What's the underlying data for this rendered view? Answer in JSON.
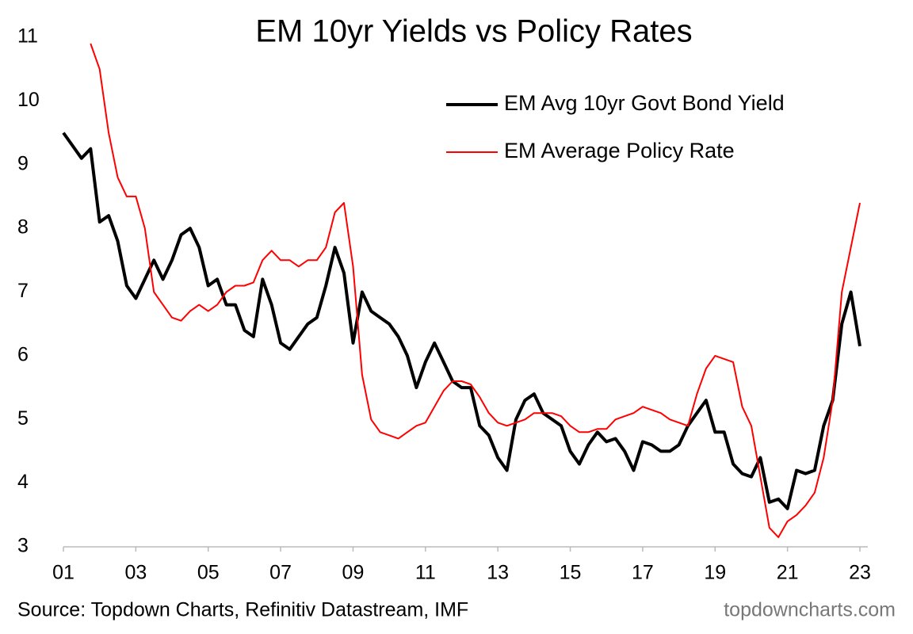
{
  "chart_data": {
    "type": "line",
    "title": "EM 10yr Yields vs Policy Rates",
    "source": "Source: Topdown Charts, Refinitiv Datastream, IMF",
    "watermark": "topdowncharts.com",
    "legend": "upper right",
    "x": [
      2001,
      2001.25,
      2001.5,
      2001.75,
      2002,
      2002.25,
      2002.5,
      2002.75,
      2003,
      2003.25,
      2003.5,
      2003.75,
      2004,
      2004.25,
      2004.5,
      2004.75,
      2005,
      2005.25,
      2005.5,
      2005.75,
      2006,
      2006.25,
      2006.5,
      2006.75,
      2007,
      2007.25,
      2007.5,
      2007.75,
      2008,
      2008.25,
      2008.5,
      2008.75,
      2009,
      2009.25,
      2009.5,
      2009.75,
      2010,
      2010.25,
      2010.5,
      2010.75,
      2011,
      2011.25,
      2011.5,
      2011.75,
      2012,
      2012.25,
      2012.5,
      2012.75,
      2013,
      2013.25,
      2013.5,
      2013.75,
      2014,
      2014.25,
      2014.5,
      2014.75,
      2015,
      2015.25,
      2015.5,
      2015.75,
      2016,
      2016.25,
      2016.5,
      2016.75,
      2017,
      2017.25,
      2017.5,
      2017.75,
      2018,
      2018.25,
      2018.5,
      2018.75,
      2019,
      2019.25,
      2019.5,
      2019.75,
      2020,
      2020.25,
      2020.5,
      2020.75,
      2021,
      2021.25,
      2021.5,
      2021.75,
      2022,
      2022.25,
      2022.5,
      2022.75,
      2023
    ],
    "series": [
      {
        "name": "EM Avg 10yr Govt Bond Yield",
        "color": "#000000",
        "width": 4,
        "values": [
          9.5,
          9.3,
          9.1,
          9.25,
          8.1,
          8.2,
          7.8,
          7.1,
          6.9,
          7.2,
          7.5,
          7.2,
          7.5,
          7.9,
          8.0,
          7.7,
          7.1,
          7.2,
          6.8,
          6.8,
          6.4,
          6.3,
          7.2,
          6.8,
          6.2,
          6.1,
          6.3,
          6.5,
          6.6,
          7.1,
          7.7,
          7.3,
          6.2,
          7.0,
          6.7,
          6.6,
          6.5,
          6.3,
          6.0,
          5.5,
          5.9,
          6.2,
          5.9,
          5.6,
          5.5,
          5.5,
          4.9,
          4.75,
          4.4,
          4.2,
          5.0,
          5.3,
          5.4,
          5.1,
          5.0,
          4.9,
          4.5,
          4.3,
          4.6,
          4.8,
          4.65,
          4.7,
          4.5,
          4.2,
          4.65,
          4.6,
          4.5,
          4.5,
          4.6,
          4.9,
          5.1,
          5.3,
          4.8,
          4.8,
          4.3,
          4.15,
          4.1,
          4.4,
          3.7,
          3.75,
          3.6,
          4.2,
          4.15,
          4.2,
          4.9,
          5.3,
          6.5,
          7.0,
          6.15
        ]
      },
      {
        "name": "EM Average Policy Rate",
        "color": "#ff0000",
        "width": 2,
        "values": [
          null,
          null,
          null,
          10.9,
          10.5,
          9.5,
          8.8,
          8.5,
          8.5,
          8.0,
          7.0,
          6.8,
          6.6,
          6.55,
          6.7,
          6.8,
          6.7,
          6.8,
          7.0,
          7.1,
          7.1,
          7.15,
          7.5,
          7.65,
          7.5,
          7.5,
          7.4,
          7.5,
          7.5,
          7.7,
          8.25,
          8.4,
          7.4,
          5.7,
          5.0,
          4.8,
          4.75,
          4.7,
          4.8,
          4.9,
          4.95,
          5.2,
          5.45,
          5.6,
          5.6,
          5.55,
          5.35,
          5.1,
          4.95,
          4.9,
          4.95,
          5.0,
          5.1,
          5.1,
          5.1,
          5.05,
          4.9,
          4.8,
          4.8,
          4.85,
          4.85,
          5.0,
          5.05,
          5.1,
          5.2,
          5.15,
          5.1,
          5.0,
          4.95,
          4.9,
          5.4,
          5.8,
          6.0,
          5.95,
          5.9,
          5.2,
          4.9,
          4.1,
          3.3,
          3.15,
          3.4,
          3.5,
          3.65,
          3.85,
          4.4,
          5.3,
          7.0,
          7.7,
          8.4
        ]
      }
    ],
    "xlim": [
      2001,
      2023
    ],
    "xticks": [
      {
        "value": 2001,
        "label": "01"
      },
      {
        "value": 2003,
        "label": "03"
      },
      {
        "value": 2005,
        "label": "05"
      },
      {
        "value": 2007,
        "label": "07"
      },
      {
        "value": 2009,
        "label": "09"
      },
      {
        "value": 2011,
        "label": "11"
      },
      {
        "value": 2013,
        "label": "13"
      },
      {
        "value": 2015,
        "label": "15"
      },
      {
        "value": 2017,
        "label": "17"
      },
      {
        "value": 2019,
        "label": "19"
      },
      {
        "value": 2021,
        "label": "21"
      },
      {
        "value": 2023,
        "label": "23"
      }
    ],
    "ylim": [
      3,
      11
    ],
    "yticks": [
      3,
      4,
      5,
      6,
      7,
      8,
      9,
      10,
      11
    ],
    "grid": false
  }
}
